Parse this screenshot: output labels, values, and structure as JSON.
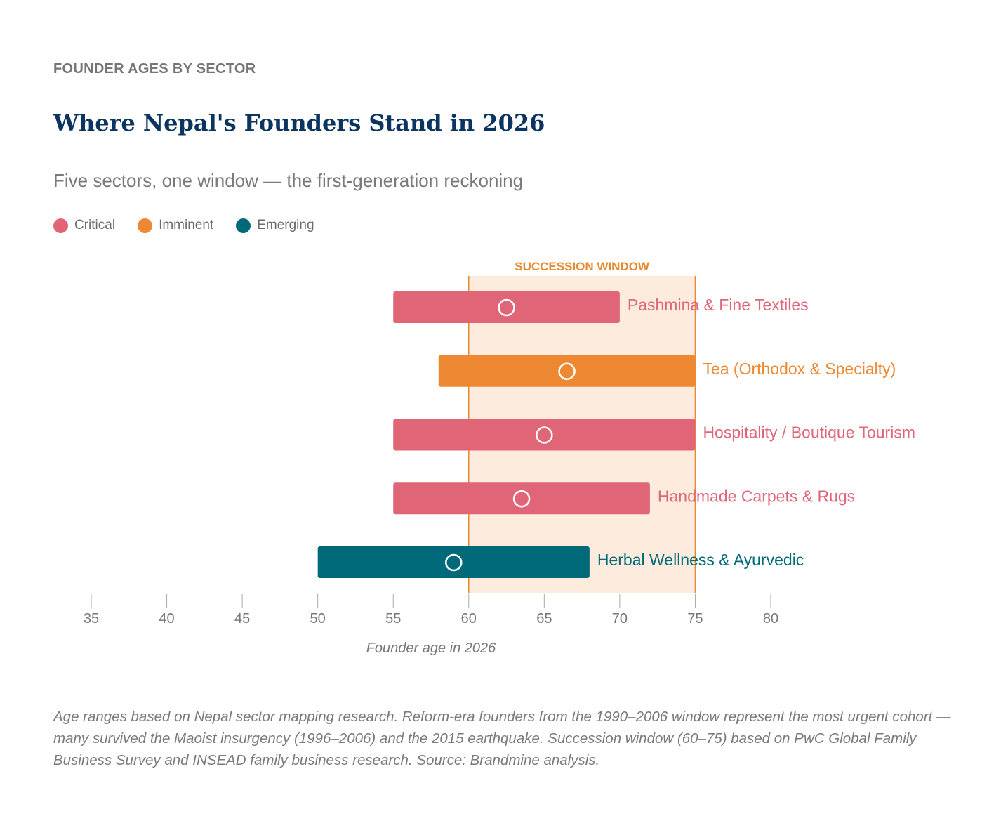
{
  "eyebrow": "FOUNDER AGES BY SECTOR",
  "title": "Where Nepal's Founders Stand in 2026",
  "subtitle": "Five sectors, one window — the first-generation reckoning",
  "legend": [
    {
      "label": "Critical",
      "color": "#E06677"
    },
    {
      "label": "Imminent",
      "color": "#EE8833"
    },
    {
      "label": "Emerging",
      "color": "#006A7A"
    }
  ],
  "note": "Age ranges based on Nepal sector mapping research. Reform-era founders from the 1990–2006 window represent the most urgent cohort — many survived the Maoist insurgency (1996–2006) and the 2015 earthquake. Succession window (60–75) based on PwC Global Family Business Survey and INSEAD family business research. Source: Brandmine analysis.",
  "chart_data": {
    "type": "range-bar",
    "xlabel": "Founder age in 2026",
    "xlim": [
      35,
      80
    ],
    "xticks": [
      35,
      40,
      45,
      50,
      55,
      60,
      65,
      70,
      75,
      80
    ],
    "grid": false,
    "window": {
      "label": "SUCCESSION WINDOW",
      "start": 60,
      "end": 75,
      "fill": "#FDEBDD",
      "line": "#E8892F"
    },
    "series": [
      {
        "label": "Pashmina & Fine Textiles",
        "status": "Critical",
        "min": 55,
        "max": 70,
        "marker": 62.5
      },
      {
        "label": "Tea (Orthodox & Specialty)",
        "status": "Imminent",
        "min": 58,
        "max": 75,
        "marker": 66.5
      },
      {
        "label": "Hospitality / Boutique Tourism",
        "status": "Critical",
        "min": 55,
        "max": 75,
        "marker": 65
      },
      {
        "label": "Handmade Carpets & Rugs",
        "status": "Critical",
        "min": 55,
        "max": 72,
        "marker": 63.5
      },
      {
        "label": "Herbal Wellness & Ayurvedic",
        "status": "Emerging",
        "min": 50,
        "max": 68,
        "marker": 59
      }
    ]
  }
}
